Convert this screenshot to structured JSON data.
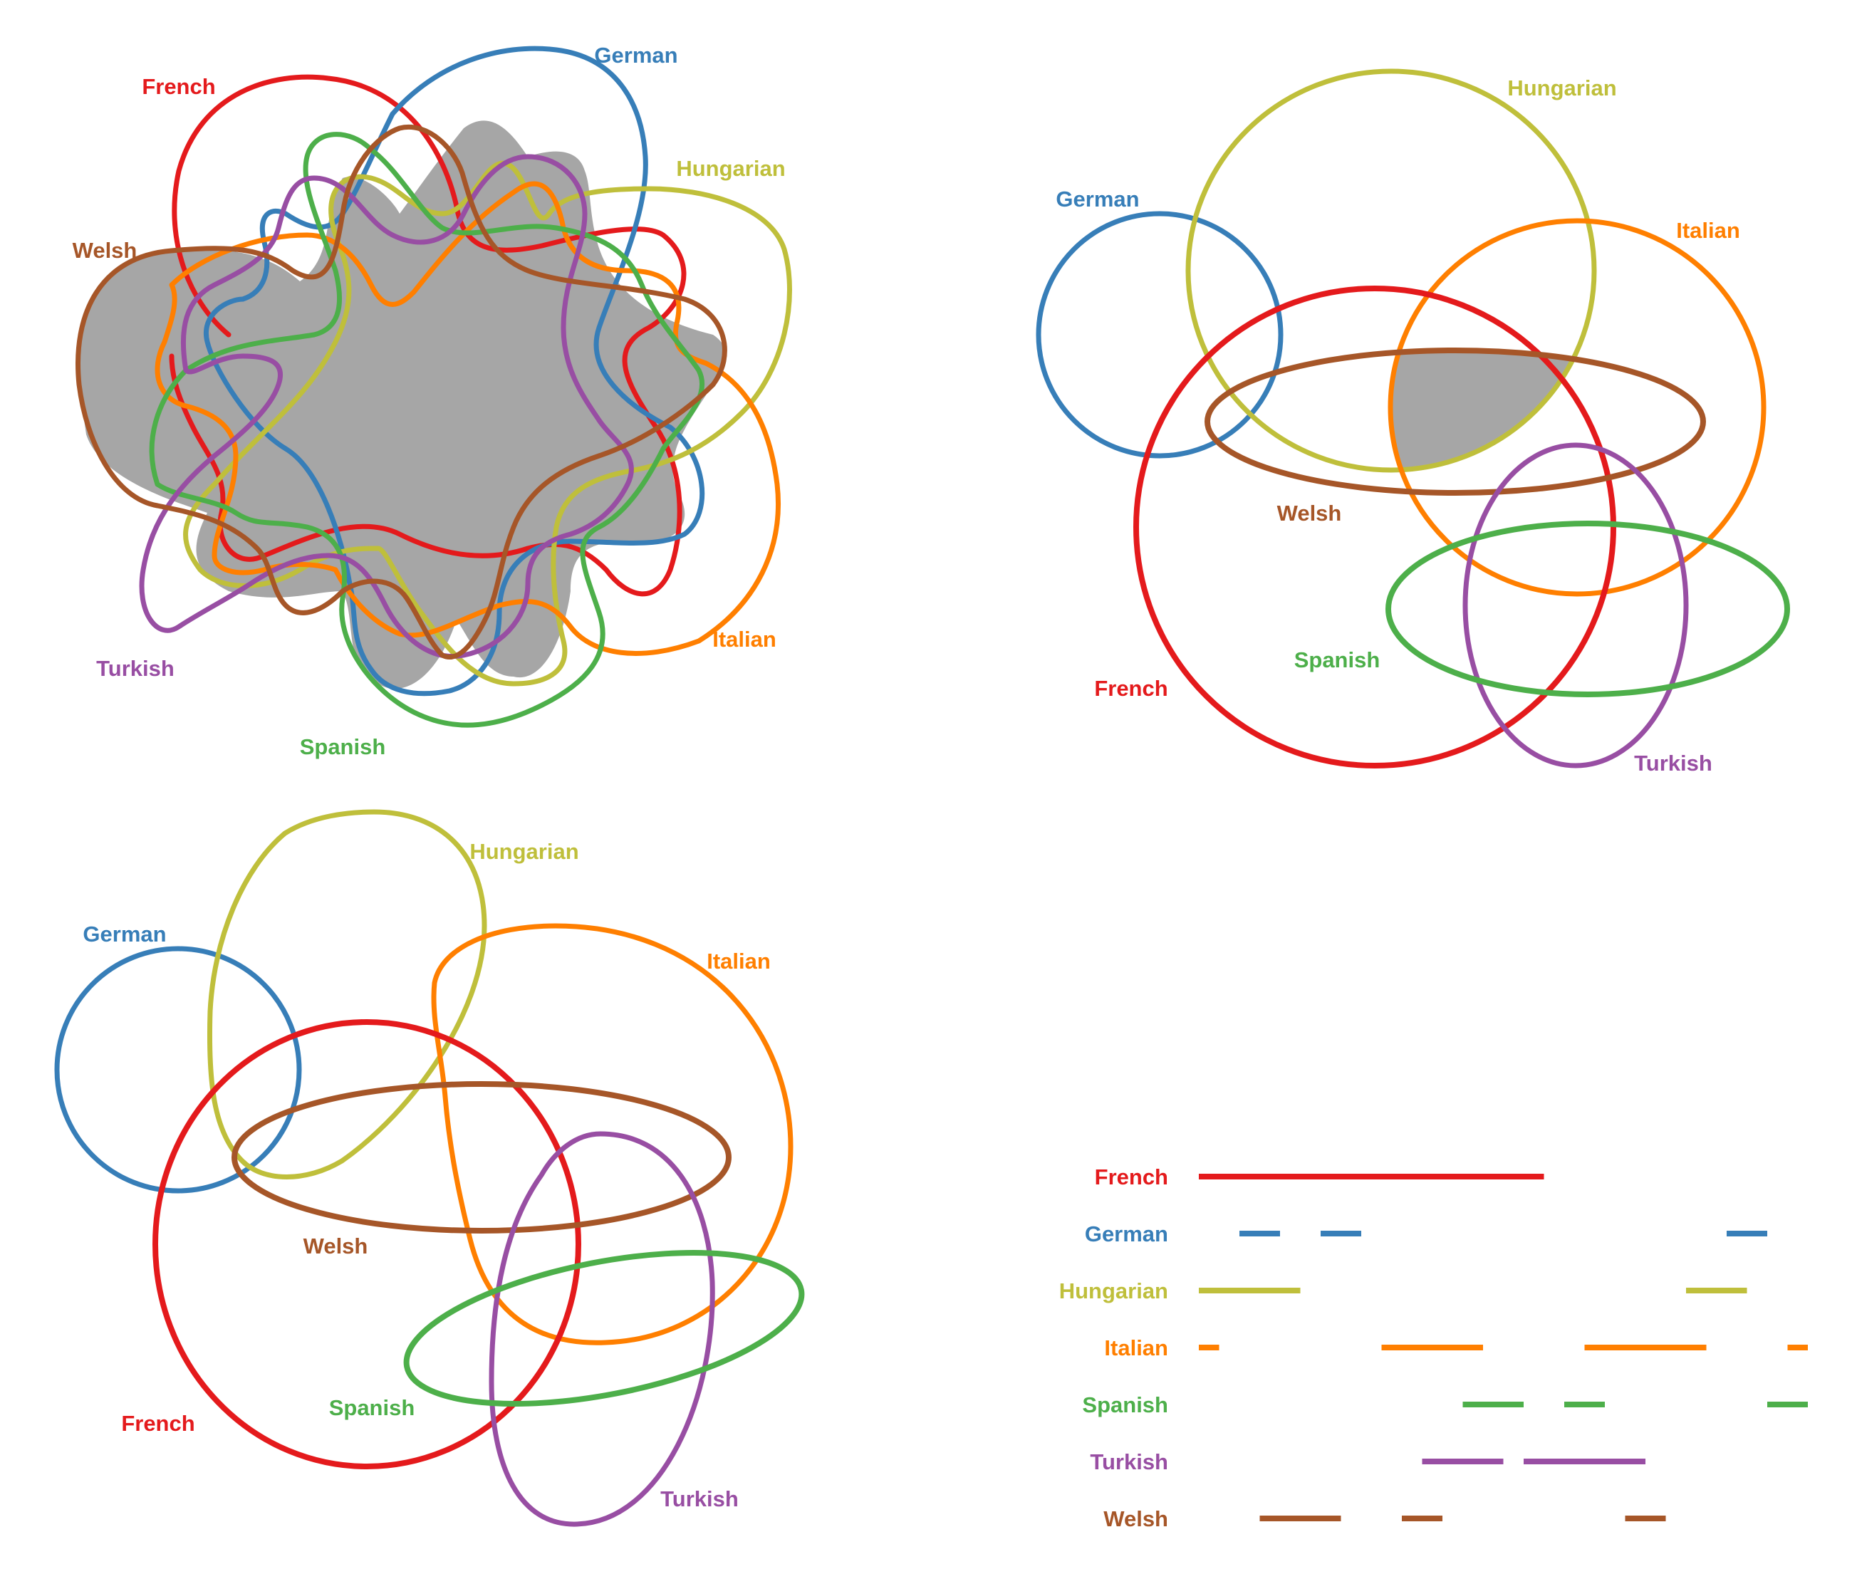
{
  "colors": {
    "French": "#e41a1c",
    "German": "#377eb8",
    "Hungarian": "#bfbf3b",
    "Italian": "#ff7f00",
    "Spanish": "#4daf4a",
    "Turkish": "#984ea3",
    "Welsh": "#a65628",
    "shade": "#a6a6a6"
  },
  "panel1": {
    "labels": {
      "French": "French",
      "German": "German",
      "Hungarian": "Hungarian",
      "Italian": "Italian",
      "Spanish": "Spanish",
      "Turkish": "Turkish",
      "Welsh": "Welsh"
    }
  },
  "panel2": {
    "labels": {
      "French": "French",
      "German": "German",
      "Hungarian": "Hungarian",
      "Italian": "Italian",
      "Spanish": "Spanish",
      "Turkish": "Turkish",
      "Welsh": "Welsh"
    }
  },
  "panel3": {
    "labels": {
      "French": "French",
      "German": "German",
      "Hungarian": "Hungarian",
      "Italian": "Italian",
      "Spanish": "Spanish",
      "Turkish": "Turkish",
      "Welsh": "Welsh"
    }
  },
  "legend": {
    "rows": [
      {
        "label": "French",
        "segments": [
          [
            0,
            17
          ]
        ]
      },
      {
        "label": "German",
        "segments": [
          [
            2,
            4
          ],
          [
            6,
            8
          ],
          [
            26,
            28
          ]
        ]
      },
      {
        "label": "Hungarian",
        "segments": [
          [
            0,
            5
          ],
          [
            24,
            27
          ]
        ]
      },
      {
        "label": "Italian",
        "segments": [
          [
            0,
            1
          ],
          [
            9,
            14
          ],
          [
            19,
            25
          ],
          [
            29,
            30
          ]
        ]
      },
      {
        "label": "Spanish",
        "segments": [
          [
            13,
            16
          ],
          [
            18,
            20
          ],
          [
            28,
            30
          ]
        ]
      },
      {
        "label": "Turkish",
        "segments": [
          [
            11,
            15
          ],
          [
            16,
            22
          ]
        ]
      },
      {
        "label": "Welsh",
        "segments": [
          [
            3,
            7
          ],
          [
            10,
            12
          ],
          [
            21,
            23
          ]
        ]
      }
    ],
    "max": 30
  }
}
